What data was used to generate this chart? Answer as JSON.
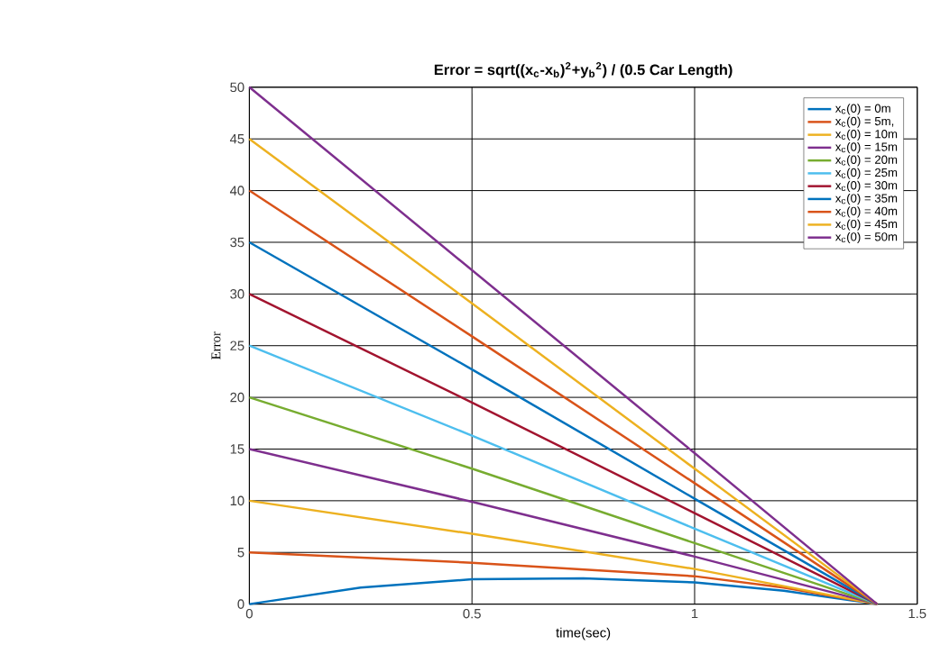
{
  "chart_data": {
    "type": "line",
    "title": "Error = sqrt((x$_{c}$-x$_{b}$)$^{2}$+y$_{b}$$^{2}$) / (0.5 Car Length)",
    "xlabel": "time(sec)",
    "ylabel": "Error",
    "xlim": [
      0,
      1.5
    ],
    "ylim": [
      0,
      50
    ],
    "xticks": [
      0,
      0.5,
      1,
      1.5
    ],
    "yticks": [
      0,
      5,
      10,
      15,
      20,
      25,
      30,
      35,
      40,
      45,
      50
    ],
    "grid": true,
    "legend": "top right",
    "line_style": "solid",
    "marker": "none",
    "series": [
      {
        "name": "x$_{c}$(0) = 0m",
        "color": "#0072bd",
        "x": [
          0,
          0.25,
          0.5,
          0.75,
          1,
          1.2,
          1.41
        ],
        "values": [
          0,
          1.6,
          2.4,
          2.5,
          2.1,
          1.3,
          0
        ]
      },
      {
        "name": "x$_{c}$(0) = 5m,",
        "color": "#d95319",
        "x": [
          0,
          0.5,
          1,
          1.2,
          1.41
        ],
        "values": [
          5,
          4.0,
          2.7,
          1.6,
          0
        ]
      },
      {
        "name": "x$_{c}$(0) = 10m",
        "color": "#edb120",
        "x": [
          0,
          0.5,
          1,
          1.41
        ],
        "values": [
          10,
          6.8,
          3.4,
          0
        ]
      },
      {
        "name": "x$_{c}$(0) = 15m",
        "color": "#7e2f8e",
        "x": [
          0,
          0.5,
          1,
          1.41
        ],
        "values": [
          15,
          9.9,
          4.6,
          0
        ]
      },
      {
        "name": "x$_{c}$(0) = 20m",
        "color": "#77ac30",
        "x": [
          0,
          0.5,
          1,
          1.41
        ],
        "values": [
          20,
          13.1,
          5.9,
          0
        ]
      },
      {
        "name": "x$_{c}$(0) = 25m",
        "color": "#4dbeee",
        "x": [
          0,
          0.5,
          1,
          1.41
        ],
        "values": [
          25,
          16.3,
          7.3,
          0
        ]
      },
      {
        "name": "x$_{c}$(0) = 30m",
        "color": "#a2142f",
        "x": [
          0,
          0.5,
          1,
          1.41
        ],
        "values": [
          30,
          19.5,
          8.8,
          0
        ]
      },
      {
        "name": "x$_{c}$(0) = 35m",
        "color": "#0072bd",
        "x": [
          0,
          0.5,
          1,
          1.41
        ],
        "values": [
          35,
          22.7,
          10.2,
          0
        ]
      },
      {
        "name": "x$_{c}$(0) = 40m",
        "color": "#d95319",
        "x": [
          0,
          0.5,
          1,
          1.41
        ],
        "values": [
          40,
          25.9,
          11.7,
          0
        ]
      },
      {
        "name": "x$_{c}$(0) = 45m",
        "color": "#edb120",
        "x": [
          0,
          0.5,
          1,
          1.41
        ],
        "values": [
          45,
          29.1,
          13.1,
          0
        ]
      },
      {
        "name": "x$_{c}$(0) = 50m",
        "color": "#7e2f8e",
        "x": [
          0,
          0.5,
          1,
          1.41
        ],
        "values": [
          50,
          32.3,
          14.6,
          0
        ]
      }
    ]
  }
}
